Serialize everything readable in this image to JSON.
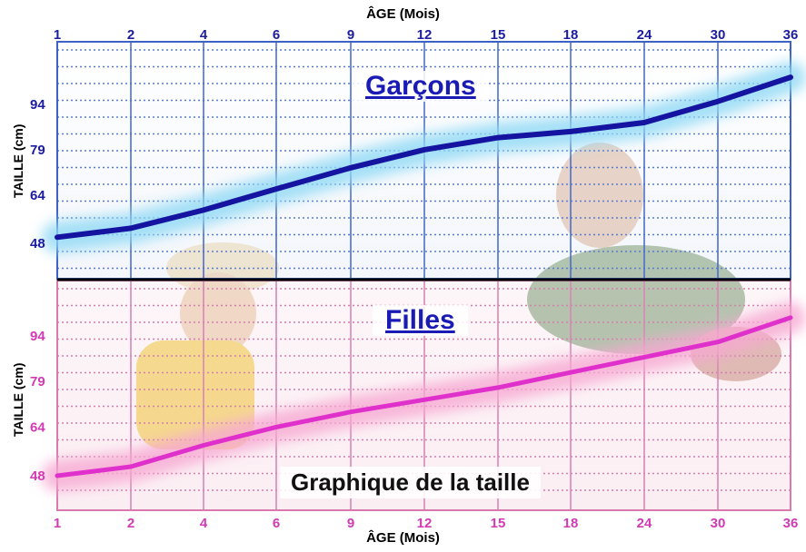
{
  "x_axis_title": "ÂGE (Mois)",
  "footer_title": "Graphique de la taille",
  "chart_data": [
    {
      "type": "line",
      "title": "Garçons",
      "xlabel": "ÂGE (Mois)",
      "ylabel": "TAILLE (cm)",
      "categories": [
        "1",
        "2",
        "4",
        "6",
        "9",
        "12",
        "15",
        "18",
        "24",
        "30",
        "36"
      ],
      "yticks": [
        48,
        64,
        79,
        94
      ],
      "series": [
        {
          "values": [
            50,
            53,
            59,
            66,
            73,
            79,
            83,
            85,
            88,
            95,
            103
          ]
        }
      ],
      "grid": true,
      "colors": {
        "line": "#1414a0",
        "glow": "#8fd9f5",
        "axis": "#2e5fb5",
        "frame": "#3b62c4",
        "ticks": "#1c1ca0"
      }
    },
    {
      "type": "line",
      "title": "Filles",
      "xlabel": "ÂGE (Mois)",
      "ylabel": "TAILLE (cm)",
      "categories": [
        "1",
        "2",
        "4",
        "6",
        "9",
        "12",
        "15",
        "18",
        "24",
        "30",
        "36"
      ],
      "yticks": [
        48,
        64,
        79,
        94
      ],
      "series": [
        {
          "values": [
            48,
            51,
            58,
            64,
            69,
            73,
            77,
            82,
            87,
            92,
            100
          ]
        }
      ],
      "grid": true,
      "colors": {
        "line": "#e030cc",
        "glow": "#f7a8d2",
        "axis": "#c2508f",
        "frame": "#d97aac",
        "ticks": "#d23ab3"
      }
    }
  ]
}
